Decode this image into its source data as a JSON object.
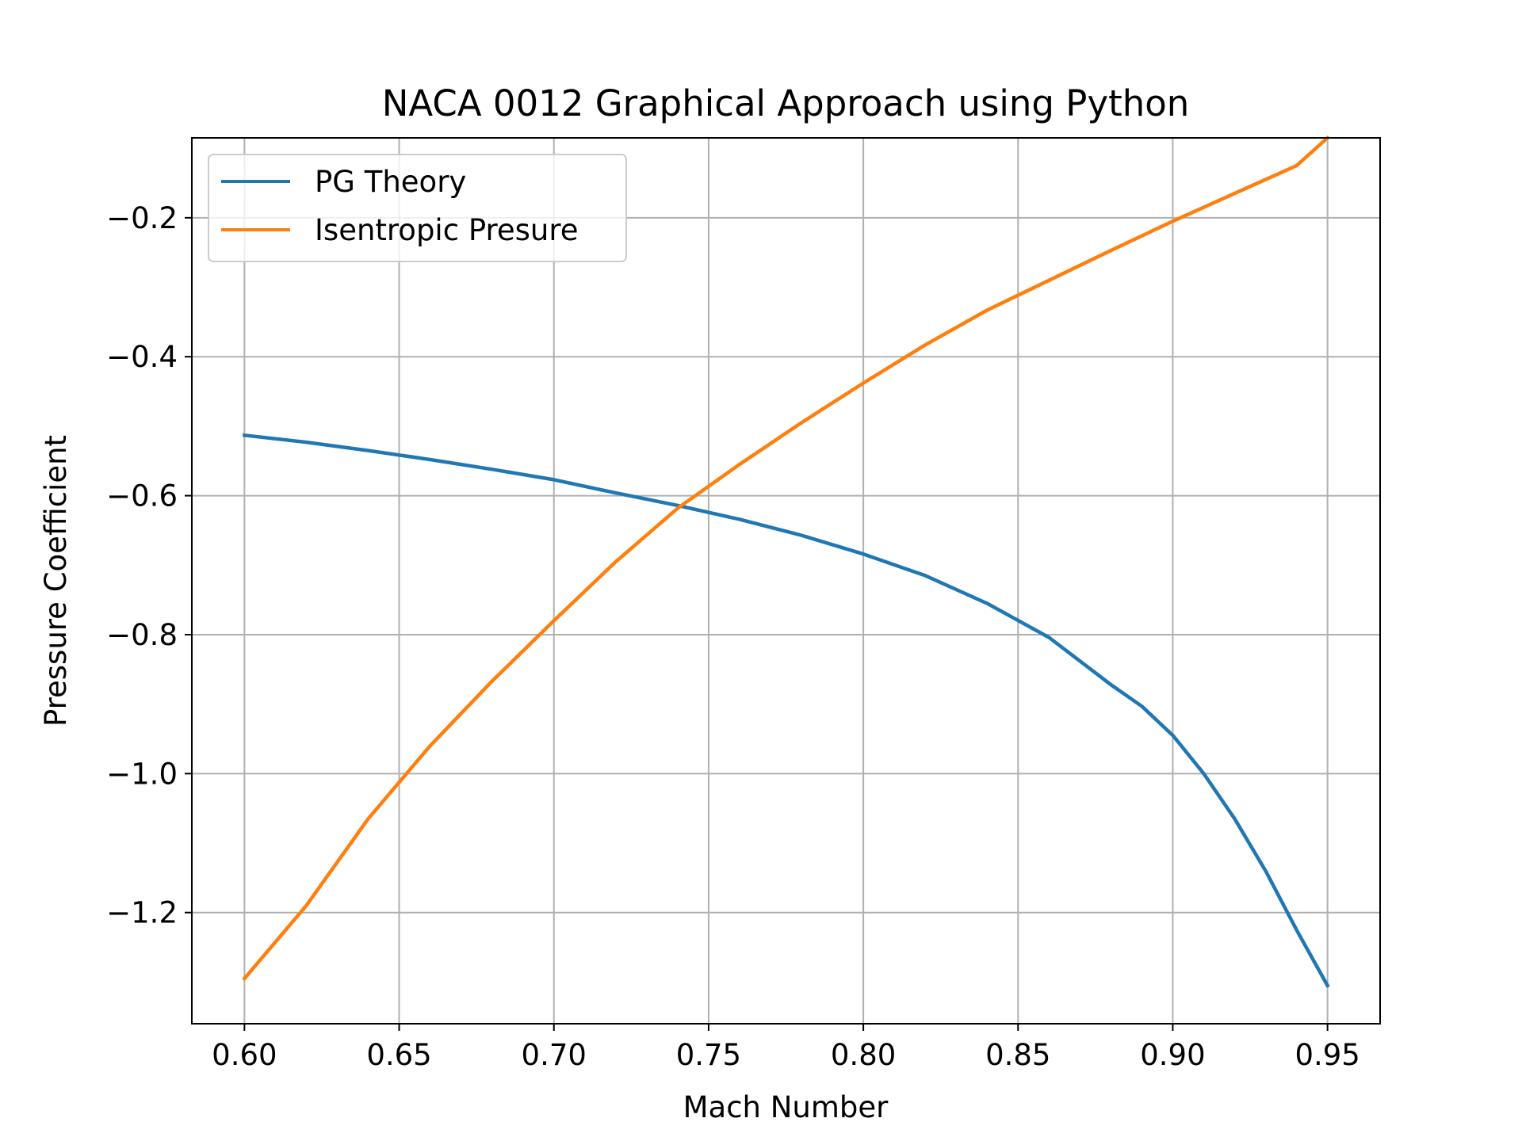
{
  "chart_data": {
    "type": "line",
    "title": "NACA 0012 Graphical Approach using Python",
    "xlabel": "Mach Number",
    "ylabel": "Pressure Coefficient",
    "xlim": [
      0.583,
      0.967
    ],
    "ylim": [
      -1.36,
      -0.085
    ],
    "xticks": [
      0.6,
      0.65,
      0.7,
      0.75,
      0.8,
      0.85,
      0.9,
      0.95
    ],
    "xtick_labels": [
      "0.60",
      "0.65",
      "0.70",
      "0.75",
      "0.80",
      "0.85",
      "0.90",
      "0.95"
    ],
    "yticks": [
      -1.2,
      -1.0,
      -0.8,
      -0.6,
      -0.4,
      -0.2
    ],
    "ytick_labels": [
      "−1.2",
      "−1.0",
      "−0.8",
      "−0.6",
      "−0.4",
      "−0.2"
    ],
    "grid": true,
    "legend_position": "upper-left",
    "series": [
      {
        "name": "PG Theory",
        "color": "#1f77b4",
        "x": [
          0.6,
          0.62,
          0.64,
          0.66,
          0.68,
          0.7,
          0.72,
          0.74,
          0.76,
          0.78,
          0.8,
          0.82,
          0.84,
          0.86,
          0.88,
          0.89,
          0.9,
          0.91,
          0.92,
          0.93,
          0.94,
          0.95
        ],
        "values": [
          -0.513,
          -0.523,
          -0.535,
          -0.548,
          -0.562,
          -0.577,
          -0.596,
          -0.614,
          -0.634,
          -0.657,
          -0.684,
          -0.715,
          -0.755,
          -0.804,
          -0.872,
          -0.903,
          -0.945,
          -1.0,
          -1.065,
          -1.14,
          -1.225,
          -1.305
        ]
      },
      {
        "name": "Isentropic Presure",
        "color": "#ff7f0e",
        "x": [
          0.6,
          0.62,
          0.64,
          0.66,
          0.68,
          0.7,
          0.72,
          0.74,
          0.76,
          0.78,
          0.8,
          0.82,
          0.84,
          0.86,
          0.88,
          0.9,
          0.92,
          0.94,
          0.95
        ],
        "values": [
          -1.295,
          -1.19,
          -1.065,
          -0.96,
          -0.867,
          -0.78,
          -0.695,
          -0.618,
          -0.555,
          -0.495,
          -0.438,
          -0.383,
          -0.333,
          -0.29,
          -0.247,
          -0.205,
          -0.165,
          -0.125,
          -0.085
        ]
      }
    ]
  }
}
